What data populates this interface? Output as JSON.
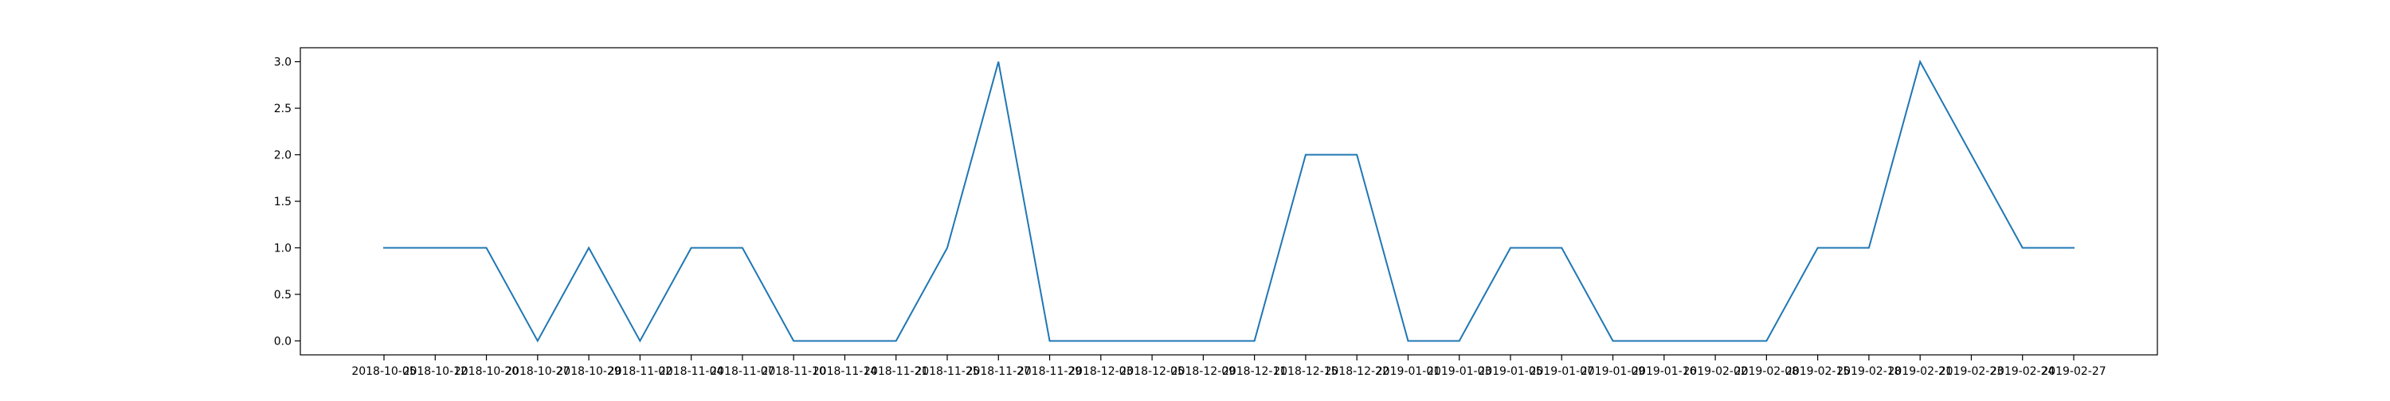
{
  "chart_data": {
    "type": "line",
    "title": "",
    "xlabel": "",
    "ylabel": "",
    "grid": false,
    "legend": "none",
    "colors": {
      "series": "#1f77b4",
      "axes": "#000000",
      "background": "#ffffff"
    },
    "ylim": [
      -0.15,
      3.15
    ],
    "yticks": [
      0.0,
      0.5,
      1.0,
      1.5,
      2.0,
      2.5,
      3.0
    ],
    "ytick_labels": [
      "0.0",
      "0.5",
      "1.0",
      "1.5",
      "2.0",
      "2.5",
      "3.0"
    ],
    "x": [
      "2018-10-05",
      "2018-10-12",
      "2018-10-20",
      "2018-10-27",
      "2018-10-29",
      "2018-11-02",
      "2018-11-04",
      "2018-11-07",
      "2018-11-10",
      "2018-11-14",
      "2018-11-21",
      "2018-11-25",
      "2018-11-27",
      "2018-11-29",
      "2018-12-03",
      "2018-12-05",
      "2018-12-09",
      "2018-12-11",
      "2018-12-15",
      "2018-12-22",
      "2019-01-01",
      "2019-01-03",
      "2019-01-05",
      "2019-01-07",
      "2019-01-09",
      "2019-01-16",
      "2019-02-02",
      "2019-02-08",
      "2019-02-15",
      "2019-02-18",
      "2019-02-21",
      "2019-02-23",
      "2019-02-24",
      "2019-02-27"
    ],
    "series": [
      {
        "values": [
          1,
          1,
          1,
          0,
          1,
          0,
          1,
          1,
          0,
          0,
          0,
          1,
          3,
          0,
          0,
          0,
          0,
          0,
          2,
          2,
          0,
          0,
          1,
          1,
          0,
          0,
          0,
          0,
          1,
          1,
          3,
          2,
          1,
          1
        ]
      }
    ]
  }
}
